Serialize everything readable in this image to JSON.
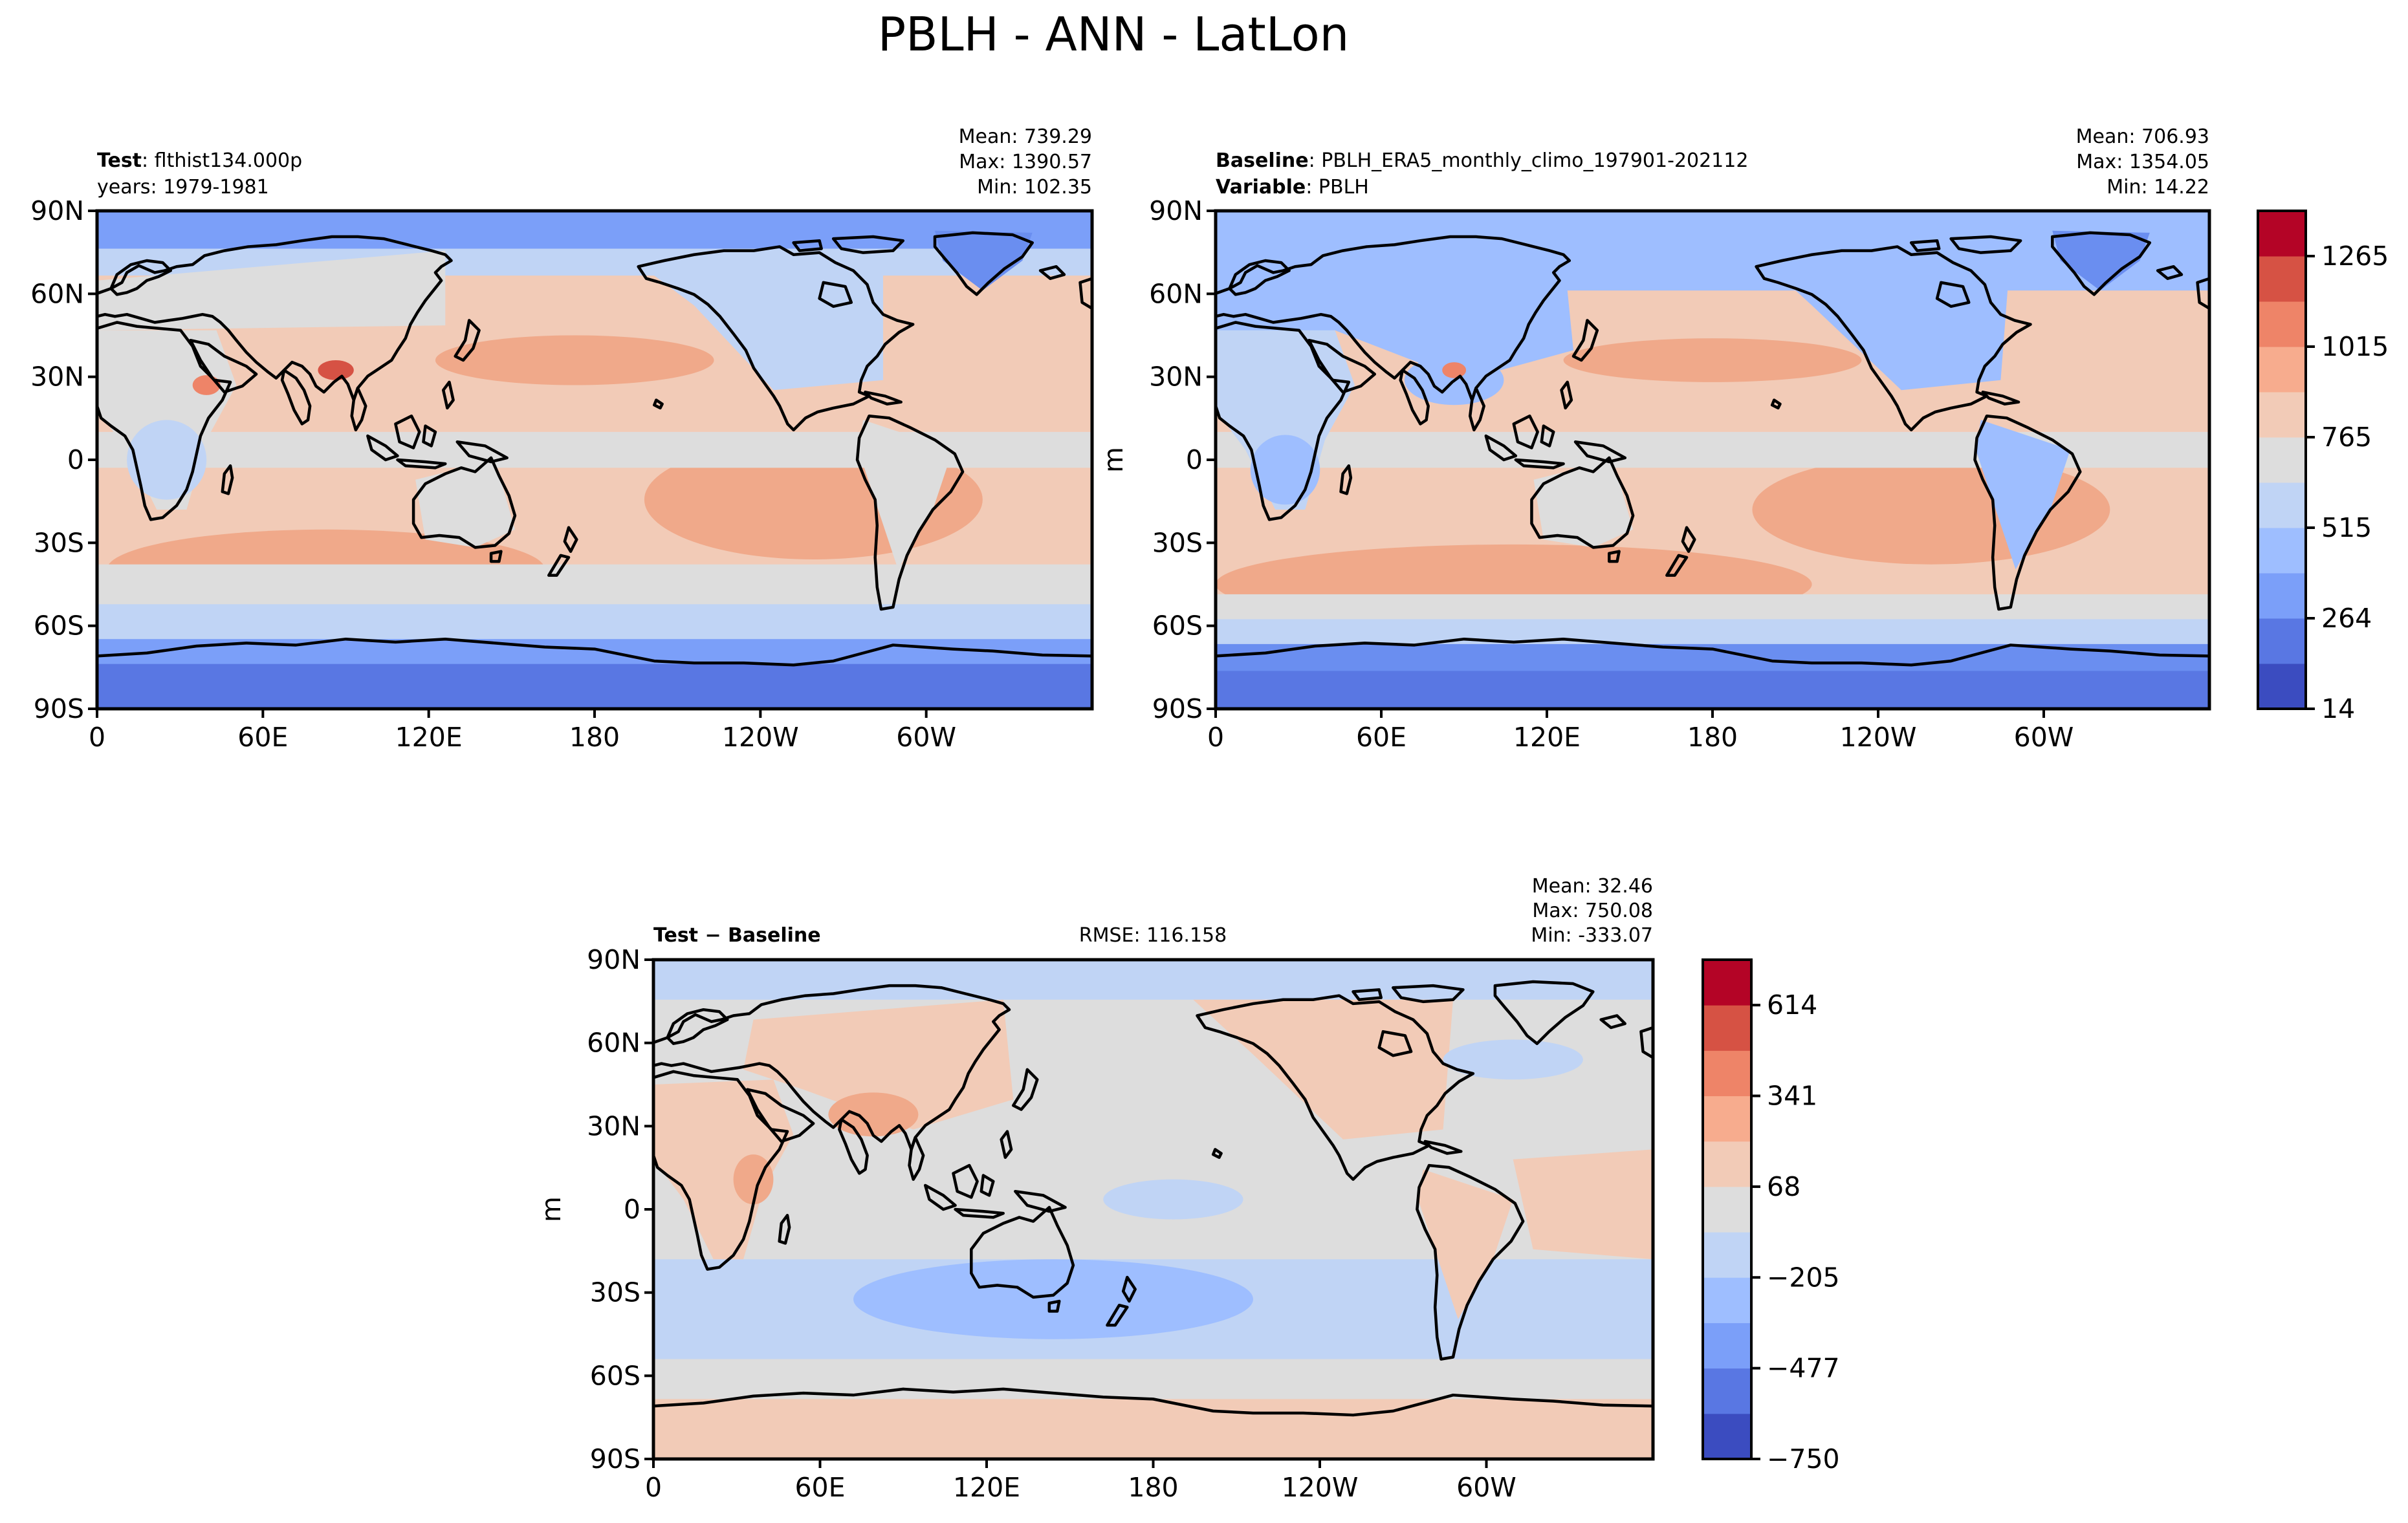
{
  "figure": {
    "title": "PBLH - ANN - LatLon"
  },
  "panels": [
    {
      "id": "test",
      "label_bold": "Test",
      "label_rest": ": flthist134.000p",
      "line2_bold": "",
      "line2_rest": "years: 1979-1981",
      "center_text": "",
      "stats": {
        "mean": "Mean: 739.29",
        "max": "Max: 1390.57",
        "min": "Min: 102.35"
      },
      "ylabel": ""
    },
    {
      "id": "baseline",
      "label_bold": "Baseline",
      "label_rest": ": PBLH_ERA5_monthly_climo_197901-202112",
      "line2_bold": "Variable",
      "line2_rest": ": PBLH",
      "center_text": "",
      "stats": {
        "mean": "Mean: 706.93",
        "max": "Max: 1354.05",
        "min": "Min: 14.22"
      },
      "ylabel": "m"
    },
    {
      "id": "diff",
      "label_bold": "Test − Baseline",
      "label_rest": "",
      "line2_bold": "",
      "line2_rest": "",
      "center_text": "RMSE: 116.158",
      "stats": {
        "mean": "Mean: 32.46",
        "max": "Max: 750.08",
        "min": "Min: -333.07"
      },
      "ylabel": "m"
    }
  ],
  "axes": {
    "lat_ticks": [
      "90N",
      "60N",
      "30N",
      "0",
      "30S",
      "60S",
      "90S"
    ],
    "lon_ticks": [
      "0",
      "60E",
      "120E",
      "180",
      "120W",
      "60W"
    ]
  },
  "colorbars": [
    {
      "id": "main",
      "tick_labels": [
        "14",
        "264",
        "515",
        "765",
        "1015",
        "1265"
      ],
      "colors": [
        "#3b4cc0",
        "#5977e3",
        "#7b9ff9",
        "#9ebeff",
        "#c0d4f5",
        "#dddddd",
        "#f2cbb7",
        "#f7ac8e",
        "#ee8468",
        "#d65244",
        "#b40426"
      ]
    },
    {
      "id": "diff",
      "tick_labels": [
        "−750",
        "−477",
        "−205",
        "68",
        "341",
        "614"
      ],
      "colors": [
        "#3b4cc0",
        "#5977e3",
        "#7b9ff9",
        "#9ebeff",
        "#c0d4f5",
        "#dddddd",
        "#f2cbb7",
        "#f7ac8e",
        "#ee8468",
        "#d65244",
        "#b40426"
      ]
    }
  ],
  "map_colors": {
    "ocean_warm": "#f2cbb7",
    "ocean_warmer": "#f0a98a",
    "land_neutral": "#dddddd",
    "cold_light": "#c0d4f5",
    "cold_mid": "#9ebeff",
    "cold_deep": "#6a8ef0",
    "cold_polar": "#5977e3",
    "hot": "#d65244"
  }
}
